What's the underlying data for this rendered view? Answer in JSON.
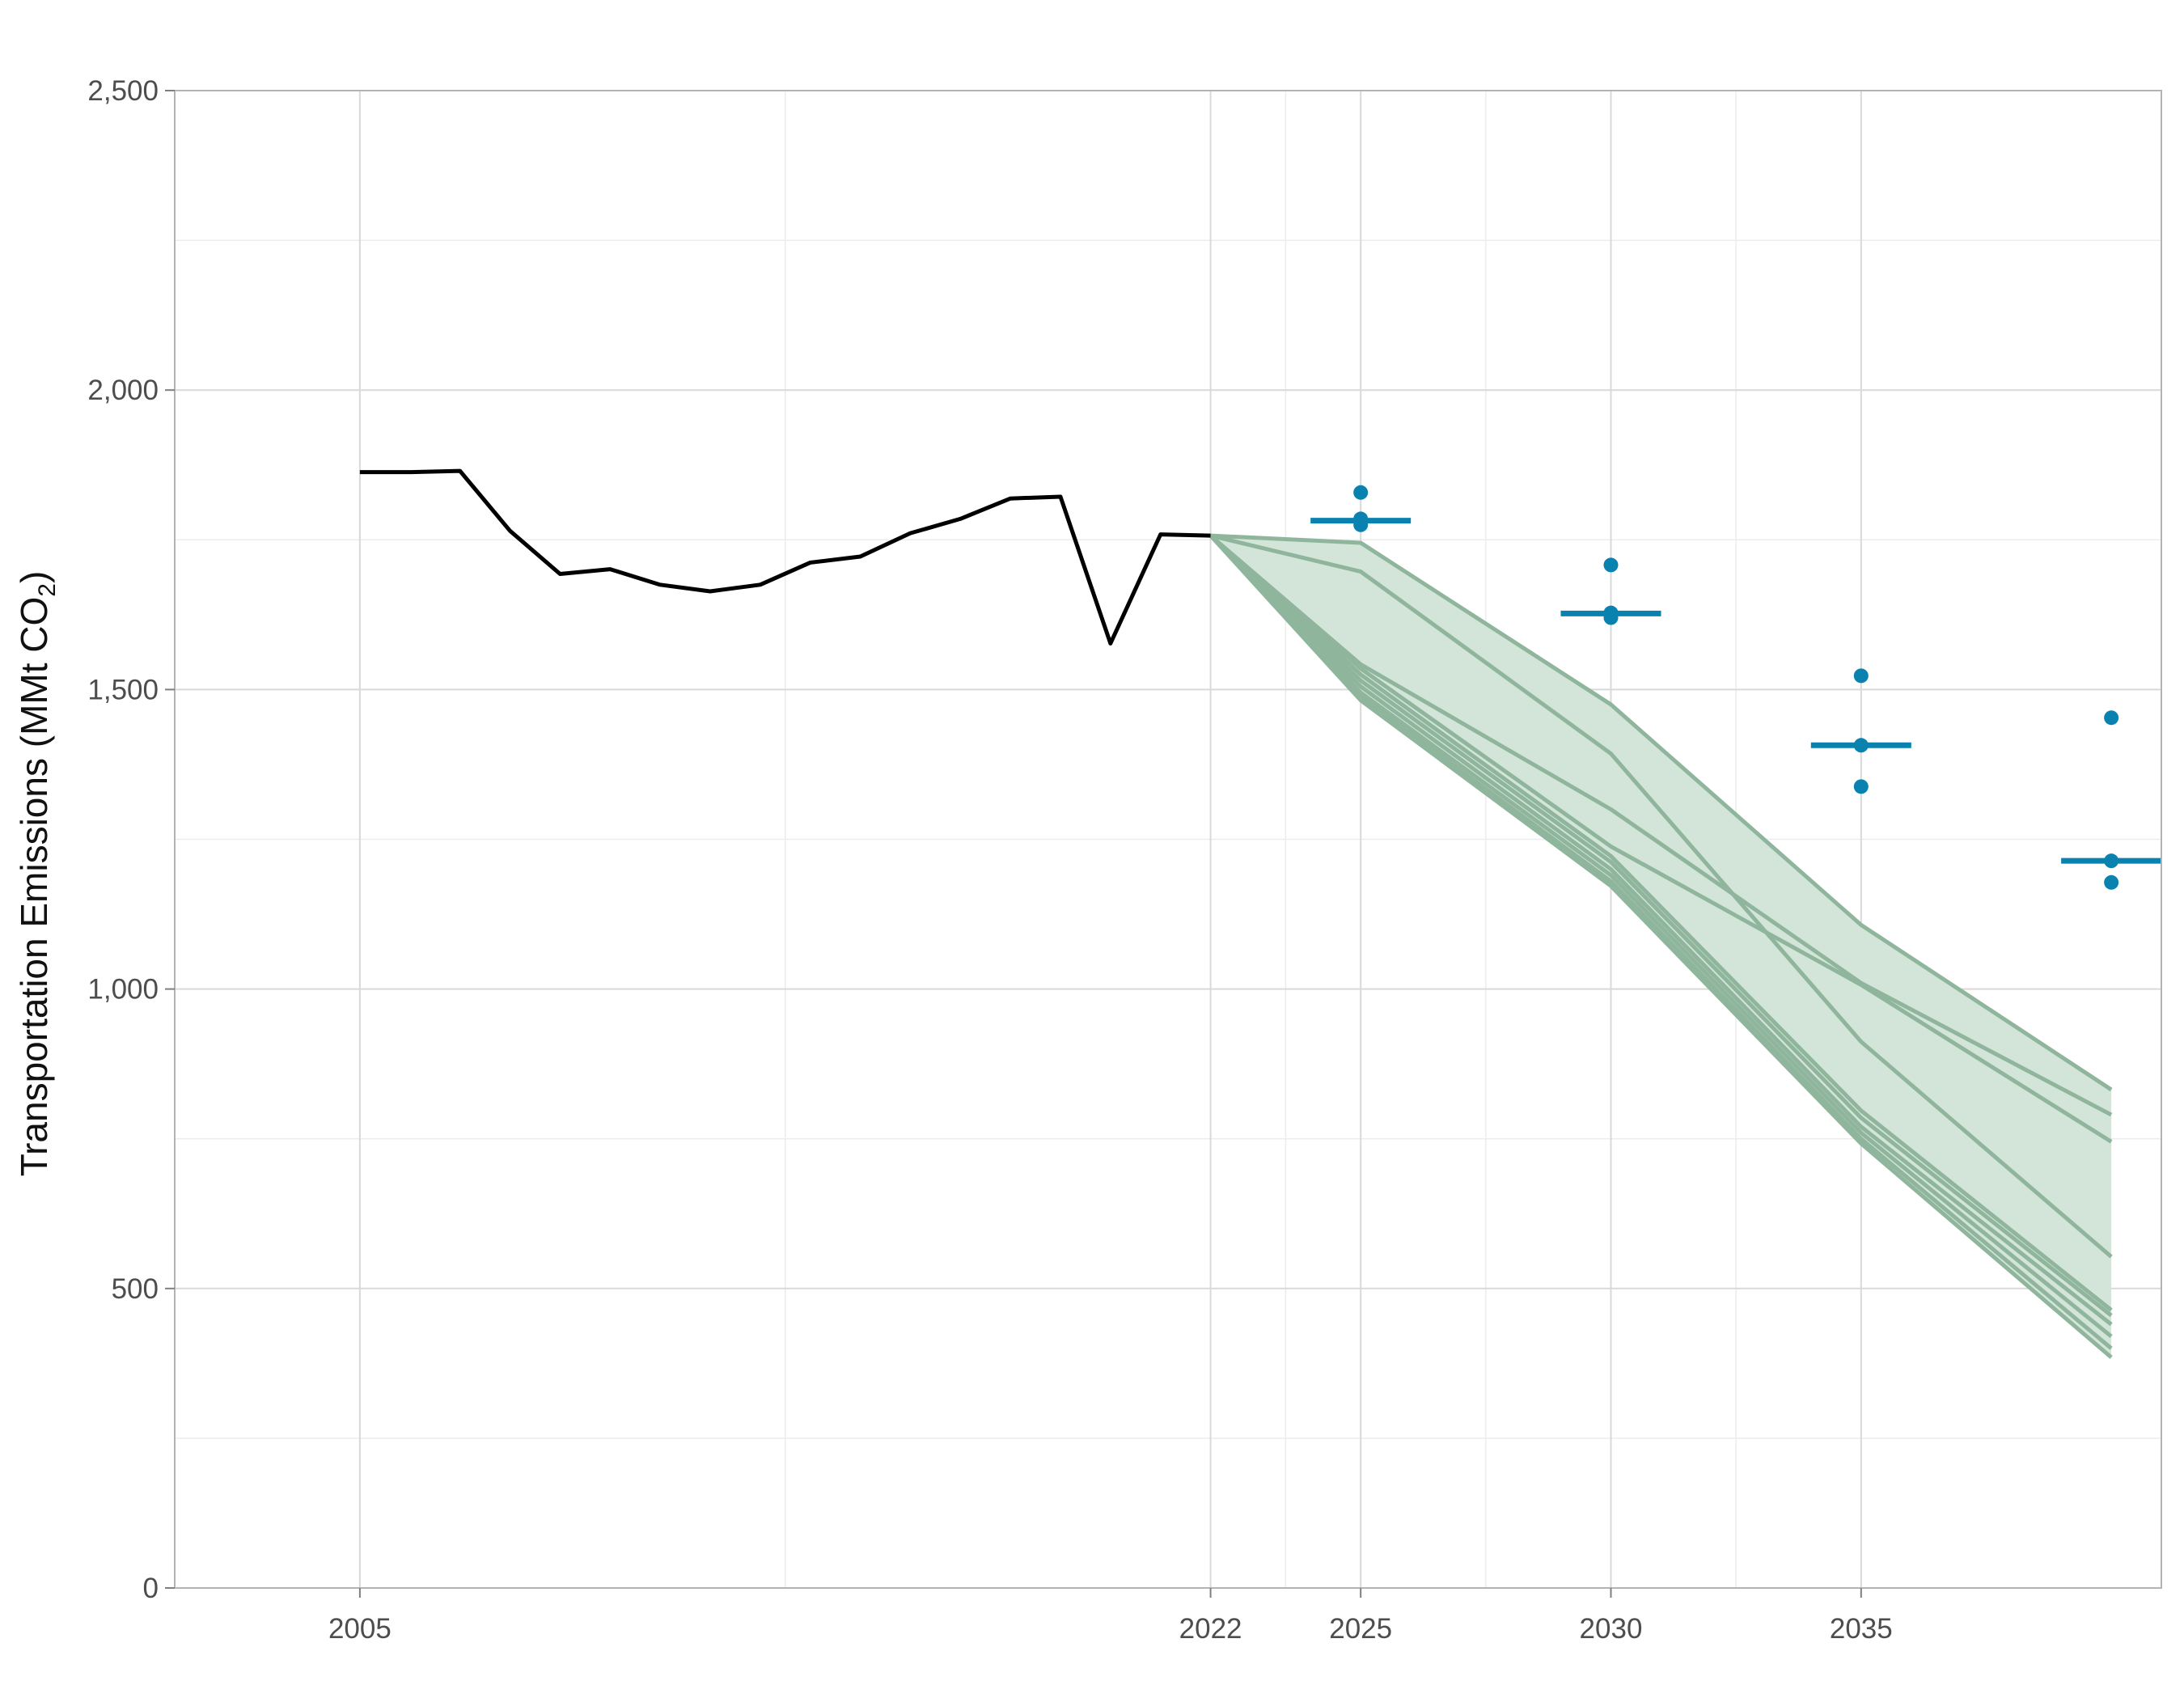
{
  "chart_data": {
    "type": "line",
    "ylabel_parts": {
      "main": "Transportation Emissions (MMt CO",
      "sub": "2",
      "close": ")"
    },
    "xlabel": "",
    "xlim": [
      2001.3,
      2041.0
    ],
    "ylim": [
      0,
      2500
    ],
    "y_ticks": [
      0,
      500,
      1000,
      1500,
      2000,
      2500
    ],
    "y_tick_labels": [
      "0",
      "500",
      "1,000",
      "1,500",
      "2,000",
      "2,500"
    ],
    "y_minor_ticks": [
      250,
      750,
      1250,
      1750,
      2250
    ],
    "x_ticks": [
      2005,
      2022,
      2025,
      2030,
      2035
    ],
    "x_tick_labels": [
      "2005",
      "2022",
      "2025",
      "2030",
      "2035"
    ],
    "x_minor_grid": [
      2013.5,
      2023.5,
      2027.5,
      2032.5
    ],
    "grid": true,
    "historical": {
      "color": "#000000",
      "x": [
        2005,
        2006,
        2007,
        2008,
        2009,
        2010,
        2011,
        2012,
        2013,
        2014,
        2015,
        2016,
        2017,
        2018,
        2019,
        2020,
        2021,
        2022
      ],
      "y": [
        1863,
        1863,
        1865,
        1765,
        1693,
        1701,
        1675,
        1664,
        1675,
        1712,
        1722,
        1761,
        1785,
        1819,
        1822,
        1577,
        1759,
        1757
      ]
    },
    "scenarios": {
      "color": "#8fb69c",
      "band_fill": "#d3e4d8",
      "x": [
        2022,
        2025,
        2030,
        2035,
        2040
      ],
      "lines": [
        [
          1757,
          1745,
          1475,
          1107,
          832
        ],
        [
          1757,
          1697,
          1393,
          912,
          553
        ],
        [
          1757,
          1542,
          1300,
          1010,
          790
        ],
        [
          1757,
          1535,
          1238,
          1007,
          745
        ],
        [
          1757,
          1525,
          1222,
          797,
          464
        ],
        [
          1757,
          1515,
          1212,
          785,
          455
        ],
        [
          1757,
          1505,
          1200,
          770,
          440
        ],
        [
          1757,
          1495,
          1190,
          760,
          420
        ],
        [
          1757,
          1488,
          1180,
          750,
          400
        ],
        [
          1757,
          1482,
          1172,
          742,
          385
        ]
      ]
    },
    "targets": {
      "color": "#0a82b0",
      "groups": [
        {
          "x": 2025,
          "median": 1782,
          "points": [
            1829,
            1785,
            1775
          ]
        },
        {
          "x": 2030,
          "median": 1627,
          "points": [
            1708,
            1628,
            1620
          ]
        },
        {
          "x": 2035,
          "median": 1407,
          "points": [
            1523,
            1407,
            1338
          ]
        },
        {
          "x": 2040,
          "median": 1214,
          "points": [
            1453,
            1214,
            1178
          ]
        }
      ]
    }
  }
}
